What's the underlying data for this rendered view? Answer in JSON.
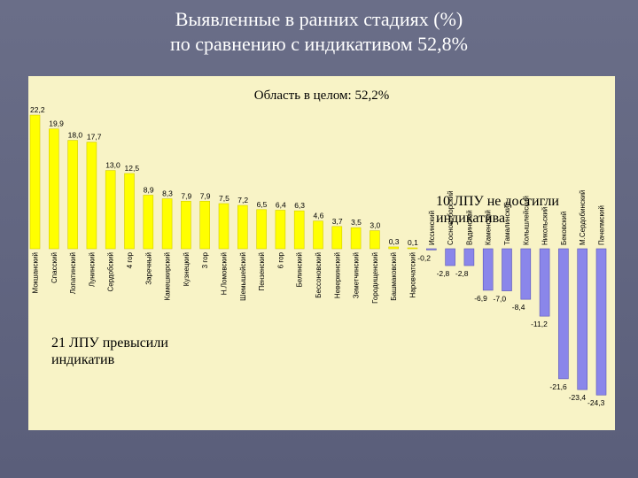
{
  "title_line1": "Выявленные в ранних стадиях (%)",
  "title_line2": "по сравнению с индикативом 52,8%",
  "overall_label": "Область в целом: 52,2%",
  "note_exceeded": "21 ЛПУ превысили\nиндикатив",
  "note_not_reached": "10 ЛПУ не достигли\nиндикатива",
  "colors": {
    "positive": "#ffff00",
    "negative": "#8a86ea",
    "background": "#f8f3c6",
    "slide": "#5e627e"
  },
  "chart_data": {
    "type": "bar",
    "title": "",
    "xlabel": "",
    "ylabel": "",
    "categories": [
      "Мокшанский",
      "Спасский",
      "Лопатинский",
      "Лунинский",
      "Сердобский",
      "4 гор",
      "Заречный",
      "Камешкирский",
      "Кузнецкий",
      "3 гор",
      "Н.Ломовский",
      "Шемышейский",
      "Пензенский",
      "6 гор",
      "Белинский",
      "Бессоновский",
      "Неверкинский",
      "Земетчинский",
      "Городищенский",
      "Башмаковский",
      "Наровчатский",
      "Иссинский",
      "Сосновоборский",
      "Вадинский",
      "Каменский",
      "Тамалинский",
      "Колышлейский",
      "Никольский",
      "Бековский",
      "М.Сердобинский",
      "Пачелмский"
    ],
    "values": [
      22.2,
      19.9,
      18.0,
      17.7,
      13.0,
      12.5,
      8.9,
      8.3,
      7.9,
      7.9,
      7.5,
      7.2,
      6.5,
      6.4,
      6.3,
      4.6,
      3.7,
      3.5,
      3.0,
      0.3,
      0.1,
      -0.2,
      -2.8,
      -2.8,
      -6.9,
      -7.0,
      -8.4,
      -11.2,
      -21.6,
      -23.4,
      -24.3
    ],
    "value_labels": [
      "22,2",
      "19,9",
      "18,0",
      "17,7",
      "13,0",
      "12,5",
      "8,9",
      "8,3",
      "7,9",
      "7,9",
      "7,5",
      "7,2",
      "6,5",
      "6,4",
      "6,3",
      "4,6",
      "3,7",
      "3,5",
      "3,0",
      "0,3",
      "0,1",
      "-0,2",
      "-2,8",
      "-2,8",
      "-6,9",
      "-7,0",
      "-8,4",
      "-11,2",
      "-21,6",
      "-23,4",
      "-24,3"
    ],
    "ylim": [
      -25,
      23
    ],
    "grid": false,
    "legend": "none"
  }
}
